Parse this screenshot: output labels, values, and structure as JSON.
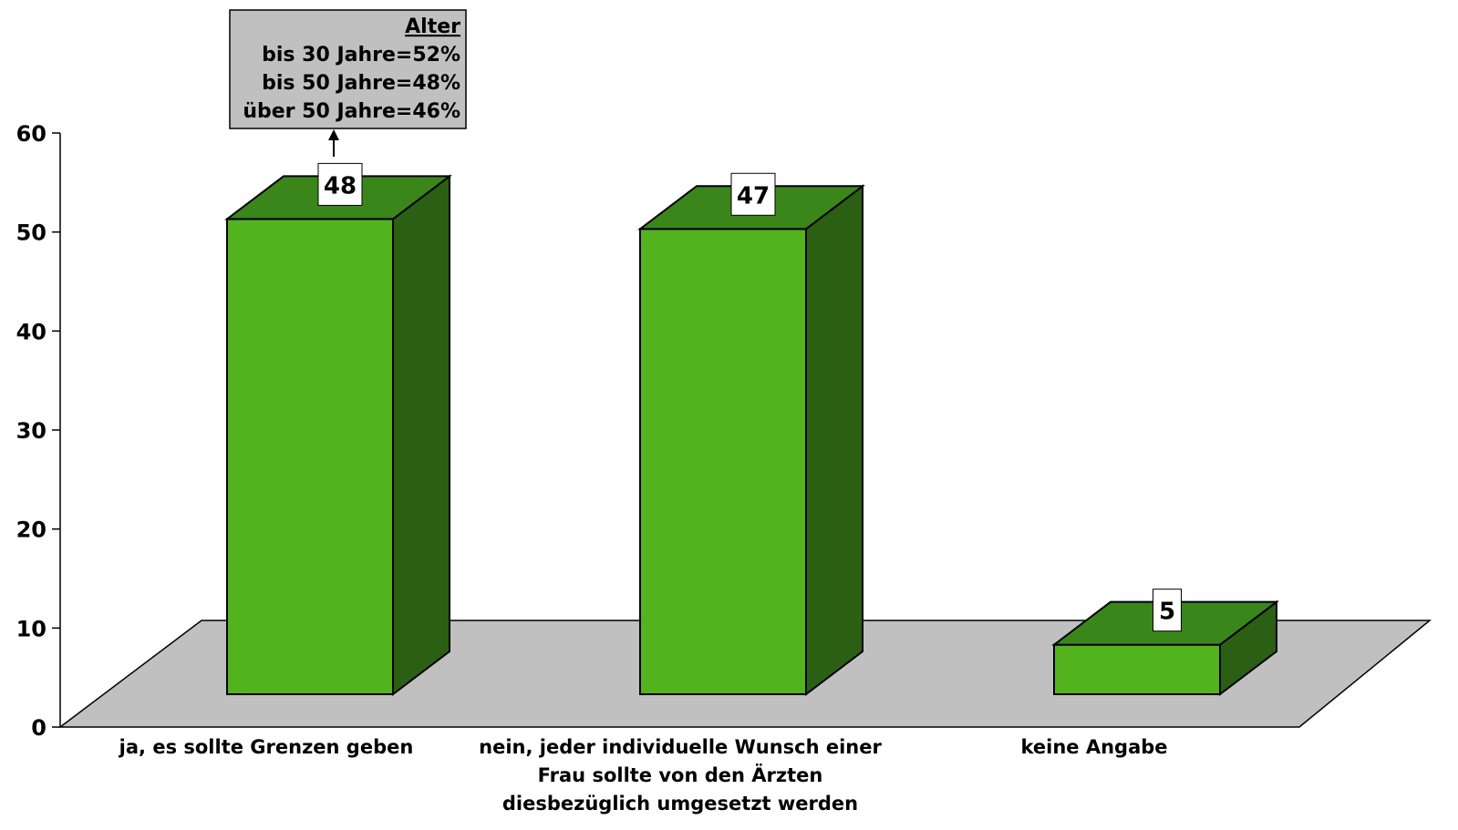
{
  "chart_data": {
    "type": "bar",
    "categories": [
      [
        "ja, es sollte Grenzen geben"
      ],
      [
        "nein, jeder individuelle Wunsch einer",
        "Frau sollte von den Ärzten",
        "diesbezüglich umgesetzt werden"
      ],
      [
        "keine Angabe"
      ]
    ],
    "values": [
      48,
      47,
      5
    ],
    "ylim": [
      0,
      60
    ],
    "yticks": [
      0,
      10,
      20,
      30,
      40,
      50,
      60
    ],
    "grid": false,
    "colors": {
      "front": "#52b31f",
      "top": "#3b861b",
      "side": "#2b5f14",
      "floor": "#c0c0c0",
      "annotation_bg": "#c0c0c0"
    },
    "annotation": {
      "attached_to": "ja, es sollte Grenzen geben",
      "title": "Alter",
      "lines": [
        "bis 30 Jahre=52%",
        "bis 50 Jahre=48%",
        "über 50 Jahre=46%"
      ]
    }
  }
}
